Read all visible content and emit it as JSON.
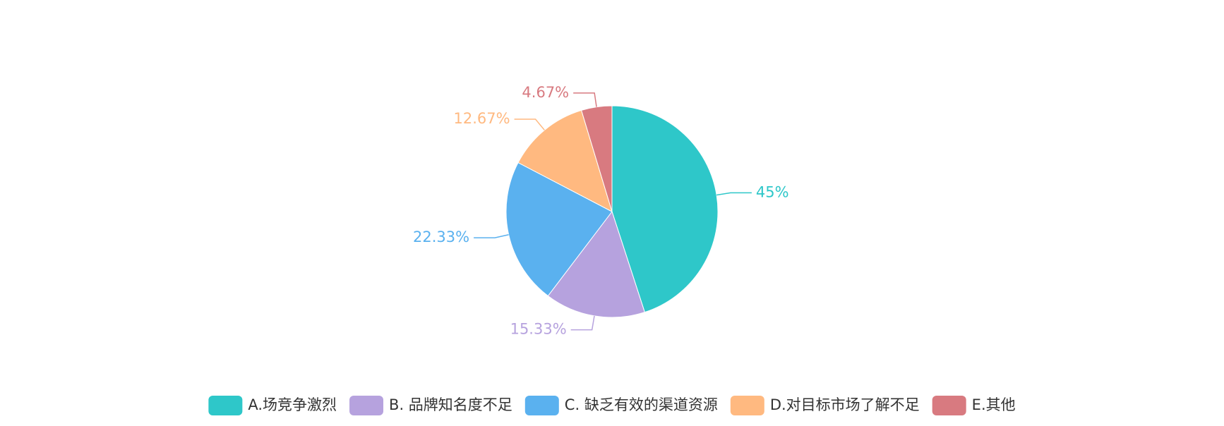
{
  "chart_data": {
    "type": "pie",
    "title": "",
    "categories": [
      "A.场竞争激烈",
      "B. 品牌知名度不足",
      "C. 缺乏有效的渠道资源",
      "D.对目标市场了解不足",
      "E.其他"
    ],
    "values": [
      45,
      15.33,
      22.33,
      12.67,
      4.67
    ],
    "value_labels": [
      "45%",
      "15.33%",
      "22.33%",
      "12.67%",
      "4.67%"
    ],
    "colors": [
      "#2ec7c9",
      "#b6a2de",
      "#5ab1ef",
      "#ffb980",
      "#d87a80"
    ],
    "start": "12 o'clock, clockwise",
    "legend_position": "bottom"
  }
}
